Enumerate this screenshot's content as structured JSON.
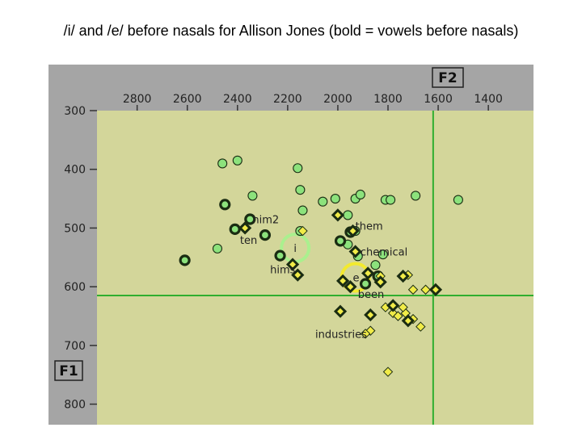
{
  "title": "/i/ and /e/ before nasals for Allison Jones (bold = vowels before nasals)",
  "chart_data": {
    "type": "scatter",
    "title": "/i/ and /e/ before nasals for Allison Jones (bold = vowels before nasals)",
    "x_axis": {
      "label": "F2",
      "reversed": true,
      "range": [
        2960,
        1220
      ],
      "ticks": [
        2800,
        2600,
        2400,
        2200,
        2000,
        1800,
        1600,
        1400
      ],
      "position": "top"
    },
    "y_axis": {
      "label": "F1",
      "reversed": true,
      "range": [
        300,
        835
      ],
      "ticks": [
        300,
        400,
        500,
        600,
        700,
        800
      ],
      "position": "left"
    },
    "reference_lines": {
      "f2": 1620,
      "f1": 615
    },
    "colors": {
      "background": "#d3d69a",
      "frame": "#a5a5a5",
      "line": "#2fae2f",
      "i_fill": "#8ce27c",
      "e_fill": "#f1ec48",
      "mark_stroke": "#1a2c12",
      "mean_i_ring": "#aaf08e",
      "mean_e_ring": "#f3ea2e"
    },
    "series": [
      {
        "marker": "circle",
        "style": "light",
        "points": [
          [
            2460,
            390
          ],
          [
            2400,
            385
          ],
          [
            2480,
            535
          ],
          [
            2340,
            445
          ],
          [
            2160,
            398
          ],
          [
            2150,
            435
          ],
          [
            2140,
            470
          ],
          [
            2150,
            505
          ],
          [
            2060,
            455
          ],
          [
            2010,
            450
          ],
          [
            1930,
            450
          ],
          [
            1910,
            443
          ],
          [
            1960,
            478
          ],
          [
            1930,
            505
          ],
          [
            1960,
            528
          ],
          [
            1920,
            548
          ],
          [
            1820,
            545
          ],
          [
            1850,
            563
          ],
          [
            1890,
            595
          ],
          [
            1810,
            452
          ],
          [
            1790,
            452
          ],
          [
            1690,
            445
          ],
          [
            1520,
            452
          ]
        ]
      },
      {
        "marker": "circle",
        "style": "bold",
        "points": [
          [
            2610,
            555
          ],
          [
            2450,
            460
          ],
          [
            2410,
            502
          ],
          [
            2350,
            485
          ],
          [
            2290,
            512
          ],
          [
            2230,
            547
          ],
          [
            1990,
            522
          ],
          [
            1950,
            507
          ],
          [
            1890,
            595
          ],
          [
            1840,
            582
          ]
        ]
      },
      {
        "marker": "diamond",
        "style": "light",
        "points": [
          [
            2140,
            505
          ],
          [
            1830,
            582
          ],
          [
            1810,
            635
          ],
          [
            1780,
            645
          ],
          [
            1760,
            650
          ],
          [
            1730,
            645
          ],
          [
            1740,
            635
          ],
          [
            1700,
            655
          ],
          [
            1670,
            668
          ],
          [
            1650,
            605
          ],
          [
            1700,
            605
          ],
          [
            1870,
            675
          ],
          [
            1890,
            680
          ],
          [
            1720,
            580
          ],
          [
            1800,
            745
          ]
        ]
      },
      {
        "marker": "diamond",
        "style": "bold",
        "points": [
          [
            2370,
            500
          ],
          [
            2180,
            562
          ],
          [
            2160,
            580
          ],
          [
            2000,
            478
          ],
          [
            1940,
            505
          ],
          [
            1930,
            540
          ],
          [
            1980,
            590
          ],
          [
            1950,
            600
          ],
          [
            1880,
            577
          ],
          [
            1830,
            592
          ],
          [
            1740,
            582
          ],
          [
            1870,
            648
          ],
          [
            1990,
            642
          ],
          [
            1780,
            632
          ],
          [
            1720,
            658
          ],
          [
            1610,
            605
          ]
        ]
      }
    ],
    "mean_markers": [
      {
        "label": "i",
        "f2": 2170,
        "f1": 534,
        "radius": 19
      },
      {
        "label": "e",
        "f2": 1930,
        "f1": 584,
        "radius": 19
      }
    ],
    "annotations": [
      {
        "text": "him2",
        "f2": 2340,
        "f1": 485
      },
      {
        "text": "ten",
        "f2": 2390,
        "f1": 520
      },
      {
        "text": "hims",
        "f2": 2270,
        "f1": 570
      },
      {
        "text": "them",
        "f2": 1930,
        "f1": 496
      },
      {
        "text": "chemical",
        "f2": 1910,
        "f1": 540
      },
      {
        "text": "e",
        "f2": 1940,
        "f1": 584
      },
      {
        "text": "been",
        "f2": 1920,
        "f1": 612
      },
      {
        "text": "industries",
        "f2": 2090,
        "f1": 680
      }
    ]
  }
}
